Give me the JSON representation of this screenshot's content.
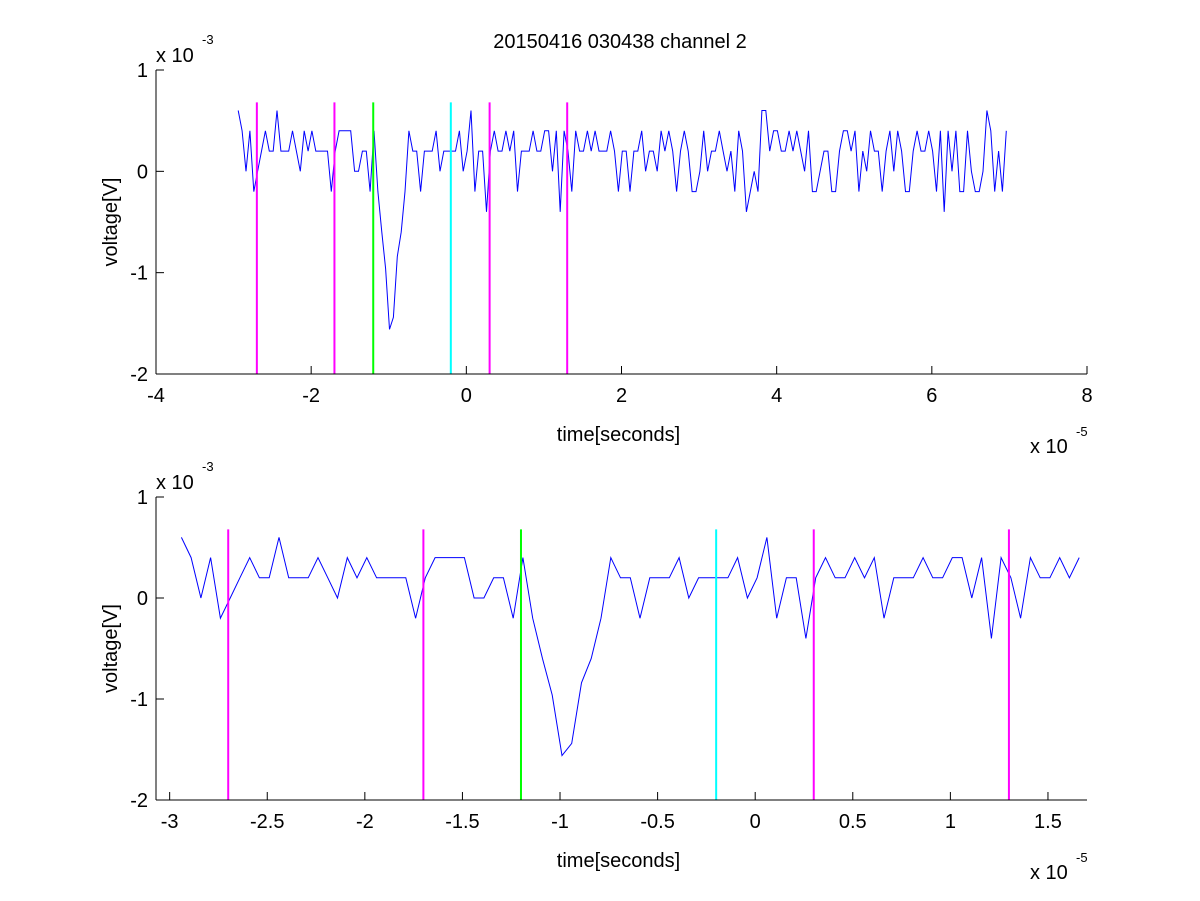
{
  "title": "20150416 030438 channel 2",
  "colors": {
    "signal": "#0000ff",
    "marker_magenta": "#ff00ff",
    "marker_green": "#00ff00",
    "marker_cyan": "#00ffff",
    "axis": "#000000"
  },
  "chart_data": [
    {
      "type": "line",
      "name": "full-trace",
      "xlabel": "time[seconds]",
      "ylabel": "voltage[V]",
      "x_multiplier": "x 10",
      "x_exponent": "-5",
      "y_multiplier": "x 10",
      "y_exponent": "-3",
      "xlim": [
        -4,
        8
      ],
      "ylim": [
        -2,
        1
      ],
      "x_ticks": [
        -4,
        -2,
        0,
        2,
        4,
        6,
        8
      ],
      "x_tick_labels": [
        "-4",
        "-2",
        "0",
        "2",
        "4",
        "6",
        "8"
      ],
      "y_ticks": [
        -2,
        -1,
        0,
        1
      ],
      "y_tick_labels": [
        "-2",
        "-1",
        "0",
        "1"
      ],
      "grid": false,
      "signal": {
        "x_start": -2.94,
        "x_end": 7.0,
        "baseline": 0.2,
        "noise_levels": [
          0.0,
          0.2,
          0.4,
          -0.2
        ],
        "spike": {
          "x_center": -0.97,
          "min": -1.8
        }
      },
      "markers": [
        {
          "x": -2.7,
          "color": "magenta",
          "y_top": 0.68
        },
        {
          "x": -1.7,
          "color": "magenta",
          "y_top": 0.68
        },
        {
          "x": -1.2,
          "color": "green",
          "y_top": 0.68
        },
        {
          "x": -0.2,
          "color": "cyan",
          "y_top": 0.68
        },
        {
          "x": 0.3,
          "color": "magenta",
          "y_top": 0.68
        },
        {
          "x": 1.3,
          "color": "magenta",
          "y_top": 0.68
        }
      ]
    },
    {
      "type": "line",
      "name": "zoomed-trace",
      "xlabel": "time[seconds]",
      "ylabel": "voltage[V]",
      "x_multiplier": "x 10",
      "x_exponent": "-5",
      "y_multiplier": "x 10",
      "y_exponent": "-3",
      "xlim": [
        -3.07,
        1.7
      ],
      "ylim": [
        -2,
        1
      ],
      "x_ticks": [
        -3,
        -2.5,
        -2,
        -1.5,
        -1,
        -0.5,
        0,
        0.5,
        1,
        1.5
      ],
      "x_tick_labels": [
        "-3",
        "-2.5",
        "-2",
        "-1.5",
        "-1",
        "-0.5",
        "0",
        "0.5",
        "1",
        "1.5"
      ],
      "y_ticks": [
        -2,
        -1,
        0,
        1
      ],
      "y_tick_labels": [
        "-2",
        "-1",
        "0",
        "1"
      ],
      "grid": false,
      "signal": {
        "x_start": -2.94,
        "x_end": 1.7,
        "baseline": 0.2,
        "noise_levels": [
          0.0,
          0.2,
          0.4,
          -0.2
        ],
        "spike": {
          "x_center": -0.97,
          "min": -1.8
        }
      },
      "markers": [
        {
          "x": -2.7,
          "color": "magenta",
          "y_top": 0.68
        },
        {
          "x": -1.7,
          "color": "magenta",
          "y_top": 0.68
        },
        {
          "x": -1.2,
          "color": "green",
          "y_top": 0.68
        },
        {
          "x": -0.2,
          "color": "cyan",
          "y_top": 0.68
        },
        {
          "x": 0.3,
          "color": "magenta",
          "y_top": 0.68
        },
        {
          "x": 1.3,
          "color": "magenta",
          "y_top": 0.68
        }
      ]
    }
  ]
}
